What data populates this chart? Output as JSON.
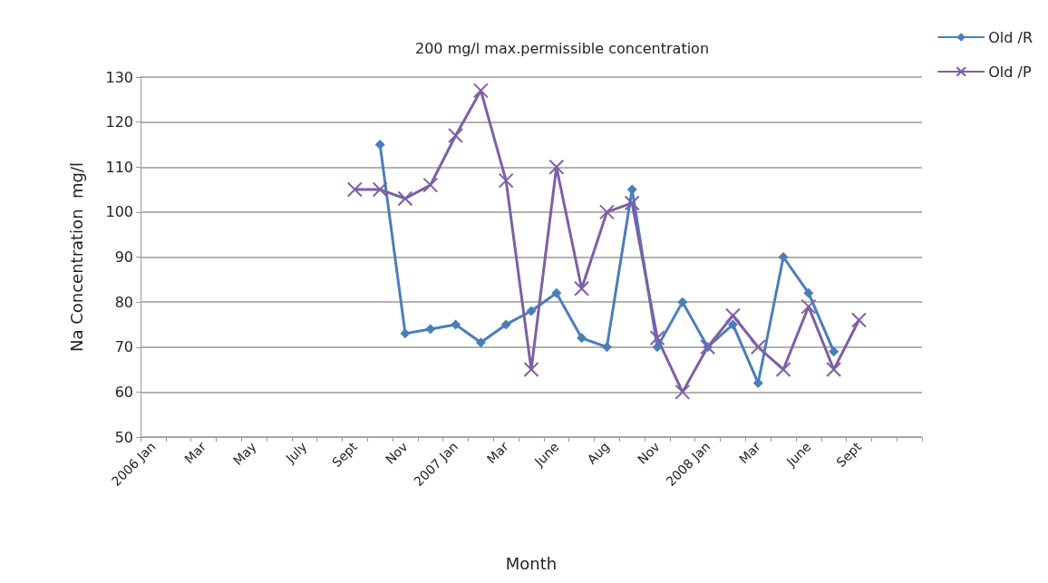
{
  "chart_data": {
    "type": "line",
    "title": "200 mg/l max.permissible concentration",
    "xlabel": "Month",
    "ylabel": "Na Concentration  mg/l",
    "categories": [
      "2006 Jan",
      null,
      "Mar",
      null,
      "May",
      null,
      "July",
      null,
      "Sept",
      null,
      "Nov",
      null,
      "2007 Jan",
      null,
      "Mar",
      null,
      "June",
      null,
      "Aug",
      null,
      "Nov",
      null,
      "2008 Jan",
      null,
      "Mar",
      null,
      "June",
      null,
      "Sept",
      null,
      null
    ],
    "series": [
      {
        "name": "Old /R",
        "color": "#4a7ebb",
        "marker": "diamond",
        "values": [
          null,
          null,
          null,
          null,
          null,
          null,
          null,
          null,
          null,
          115,
          73,
          74,
          75,
          71,
          75,
          78,
          82,
          72,
          70,
          105,
          70,
          80,
          70,
          75,
          62,
          90,
          82,
          69,
          null,
          null,
          null
        ]
      },
      {
        "name": "Old /P",
        "color": "#7d5fa6",
        "marker": "cross",
        "values": [
          null,
          null,
          null,
          null,
          null,
          null,
          null,
          null,
          105,
          105,
          103,
          106,
          117,
          127,
          107,
          65,
          110,
          83,
          100,
          102,
          72,
          60,
          70,
          77,
          70,
          65,
          79,
          65,
          76,
          null,
          null
        ]
      }
    ],
    "ylim": [
      50,
      130
    ],
    "yticks": [
      50,
      60,
      70,
      80,
      90,
      100,
      110,
      120,
      130
    ],
    "grid": "y",
    "legend": "top right",
    "line_style": "solid"
  }
}
